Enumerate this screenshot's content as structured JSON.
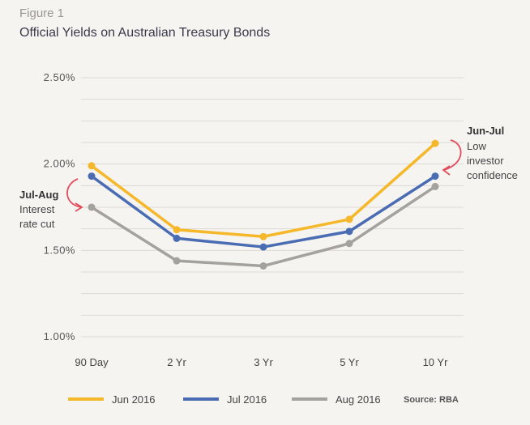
{
  "figure_label": "Figure 1",
  "chart_data": {
    "type": "line",
    "title": "Official Yields on Australian Treasury Bonds",
    "categories": [
      "90 Day",
      "2 Yr",
      "3 Yr",
      "5 Yr",
      "10 Yr"
    ],
    "ylim": [
      1.0,
      2.5
    ],
    "yticks": [
      {
        "value": 2.5,
        "label": "2.50%"
      },
      {
        "value": 2.0,
        "label": "2.00%"
      },
      {
        "value": 1.5,
        "label": "1.50%"
      },
      {
        "value": 1.0,
        "label": "1.00%"
      }
    ],
    "grid": true,
    "legend_position": "bottom",
    "series": [
      {
        "name": "Jun 2016",
        "color": "#f5b82a",
        "values": [
          1.99,
          1.62,
          1.58,
          1.68,
          2.12
        ]
      },
      {
        "name": "Jul 2016",
        "color": "#4a6cb3",
        "values": [
          1.93,
          1.57,
          1.52,
          1.61,
          1.93
        ]
      },
      {
        "name": "Aug 2016",
        "color": "#a5a19d",
        "values": [
          1.75,
          1.44,
          1.41,
          1.54,
          1.87
        ]
      }
    ],
    "annotations": [
      {
        "title": "Jul-Aug",
        "lines": [
          "Interest",
          "rate cut"
        ],
        "category": "90 Day"
      },
      {
        "title": "Jun-Jul",
        "lines": [
          "Low",
          "investor",
          "confidence"
        ],
        "category": "10 Yr"
      }
    ],
    "source": "Source: RBA",
    "arrow_color": "#e24b5b"
  }
}
